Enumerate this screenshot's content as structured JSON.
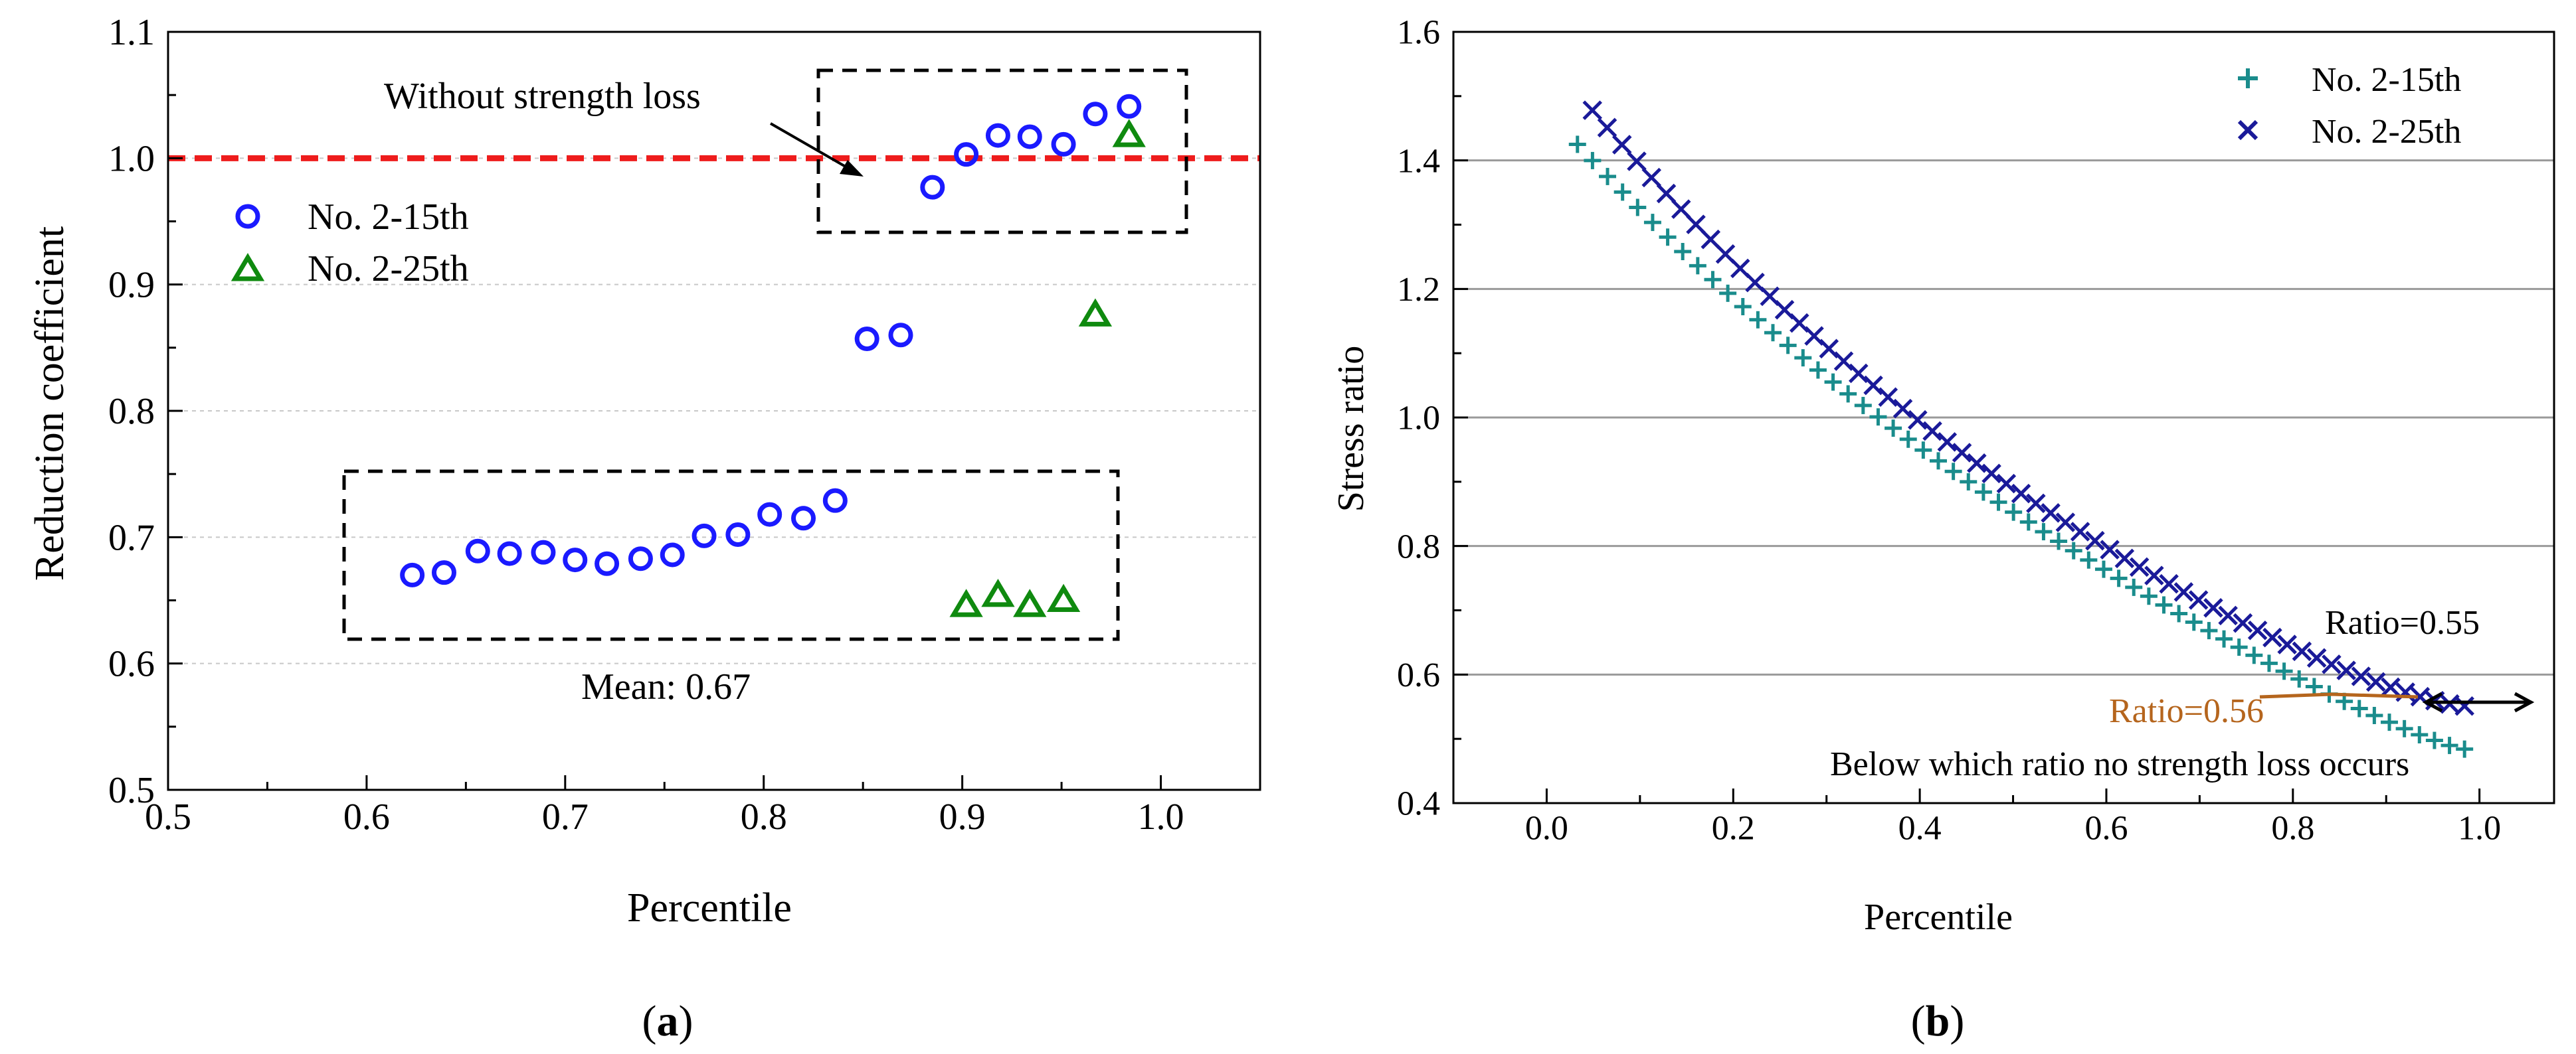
{
  "chart_data": [
    {
      "panel": "a",
      "panel_label": "(a)",
      "type": "scatter",
      "xlabel": "Percentile",
      "ylabel": "Reduction coefficient",
      "xlim": [
        0.5,
        1.05
      ],
      "ylim": [
        0.5,
        1.1
      ],
      "xticks": [
        "0.5",
        "0.6",
        "0.7",
        "0.8",
        "0.9",
        "1.0"
      ],
      "yticks": [
        "0.5",
        "0.6",
        "0.7",
        "0.8",
        "0.9",
        "1.0",
        "1.1"
      ],
      "reference_line": {
        "y": 1.0,
        "color": "#ee1c1c",
        "style": "dashed"
      },
      "annotations": {
        "upper_box": "Without strength loss",
        "lower_box": "Mean: 0.67"
      },
      "series": [
        {
          "name": "No. 2-15th",
          "marker": "circle",
          "color": "#1a1aff",
          "points": [
            [
              0.623,
              0.67
            ],
            [
              0.639,
              0.672
            ],
            [
              0.656,
              0.689
            ],
            [
              0.672,
              0.687
            ],
            [
              0.689,
              0.688
            ],
            [
              0.705,
              0.682
            ],
            [
              0.721,
              0.679
            ],
            [
              0.738,
              0.683
            ],
            [
              0.754,
              0.686
            ],
            [
              0.77,
              0.701
            ],
            [
              0.787,
              0.702
            ],
            [
              0.803,
              0.718
            ],
            [
              0.82,
              0.715
            ],
            [
              0.836,
              0.729
            ],
            [
              0.852,
              0.857
            ],
            [
              0.869,
              0.86
            ],
            [
              0.885,
              0.977
            ],
            [
              0.902,
              1.003
            ],
            [
              0.918,
              1.018
            ],
            [
              0.934,
              1.017
            ],
            [
              0.951,
              1.011
            ],
            [
              0.967,
              1.035
            ],
            [
              0.984,
              1.041
            ]
          ]
        },
        {
          "name": "No. 2-25th",
          "marker": "triangle",
          "color": "#0f8a0f",
          "points": [
            [
              0.902,
              0.646
            ],
            [
              0.918,
              0.654
            ],
            [
              0.934,
              0.646
            ],
            [
              0.951,
              0.65
            ],
            [
              0.967,
              0.876
            ],
            [
              0.984,
              1.018
            ]
          ]
        }
      ]
    },
    {
      "panel": "b",
      "panel_label": "(b)",
      "type": "scatter",
      "xlabel": "Percentile",
      "ylabel": "Stress ratio",
      "xlim": [
        -0.1,
        1.08
      ],
      "ylim": [
        0.4,
        1.6
      ],
      "xticks": [
        "0.0",
        "0.2",
        "0.4",
        "0.6",
        "0.8",
        "1.0"
      ],
      "yticks": [
        "0.4",
        "0.6",
        "0.8",
        "1.0",
        "1.2",
        "1.4",
        "1.6"
      ],
      "annotations": {
        "ratio_25": "Ratio=0.55",
        "ratio_15": "Ratio=0.56",
        "note": "Below which ratio no strength loss occurs"
      },
      "series": [
        {
          "name": "No. 2-15th",
          "marker": "plus",
          "color": "#1a8c8c",
          "curve": {
            "n": 60,
            "x_start": 0.033,
            "x_end": 0.984,
            "y_start": 1.425,
            "y_end": 0.484,
            "shape": 0.8
          }
        },
        {
          "name": "No. 2-25th",
          "marker": "cross",
          "color": "#1a1a99",
          "curve": {
            "n": 60,
            "x_start": 0.049,
            "x_end": 0.984,
            "y_start": 1.478,
            "y_end": 0.551,
            "shape": 0.72
          }
        }
      ]
    }
  ]
}
